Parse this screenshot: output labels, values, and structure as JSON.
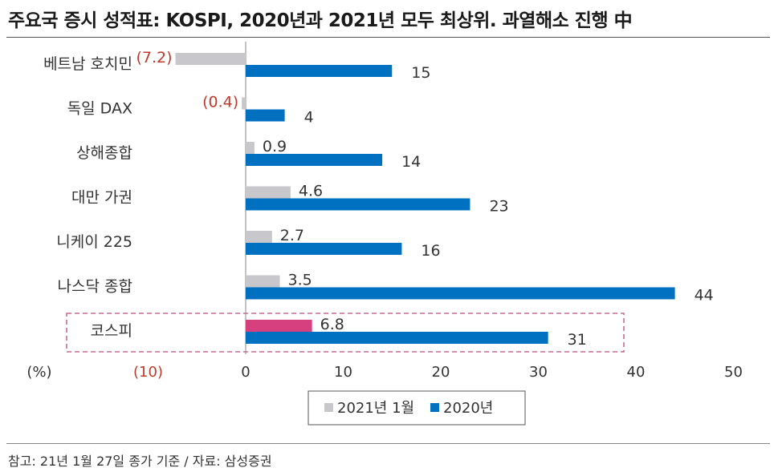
{
  "title": "주요국 증시 성적표: KOSPI, 2020년과 2021년 모두 최상위. 과열해소 진행 中",
  "footnote": "참고: 21년 1월 27일 종가 기준 / 자료: 삼성증권",
  "colors": {
    "series_2021": "#c8c8cc",
    "series_2020": "#0070c0",
    "highlight": "#d6407f",
    "negative_text": "#c0392b",
    "highlight_box": "#c96a92"
  },
  "chart_data": {
    "type": "bar",
    "orientation": "horizontal",
    "unit_label": "(%)",
    "categories": [
      "베트남 호치민",
      "독일 DAX",
      "상해종합",
      "대만 가권",
      "니케이 225",
      "나스닥 종합",
      "코스피"
    ],
    "series": [
      {
        "name": "2021년 1월",
        "values": [
          -7.2,
          -0.4,
          0.9,
          4.6,
          2.7,
          3.5,
          6.8
        ],
        "labels": [
          "(7.2)",
          "(0.4)",
          "0.9",
          "4.6",
          "2.7",
          "3.5",
          "6.8"
        ]
      },
      {
        "name": "2020년",
        "values": [
          15,
          4,
          14,
          23,
          16,
          44,
          31
        ],
        "labels": [
          "15",
          "4",
          "14",
          "23",
          "16",
          "44",
          "31"
        ]
      }
    ],
    "highlight_category": "코스피",
    "xlim": [
      -10,
      50
    ],
    "xticks": [
      -10,
      0,
      10,
      20,
      30,
      40,
      50
    ],
    "xtick_labels": [
      "(10)",
      "0",
      "10",
      "20",
      "30",
      "40",
      "50"
    ],
    "grid": false,
    "legend_position": "bottom-center"
  }
}
